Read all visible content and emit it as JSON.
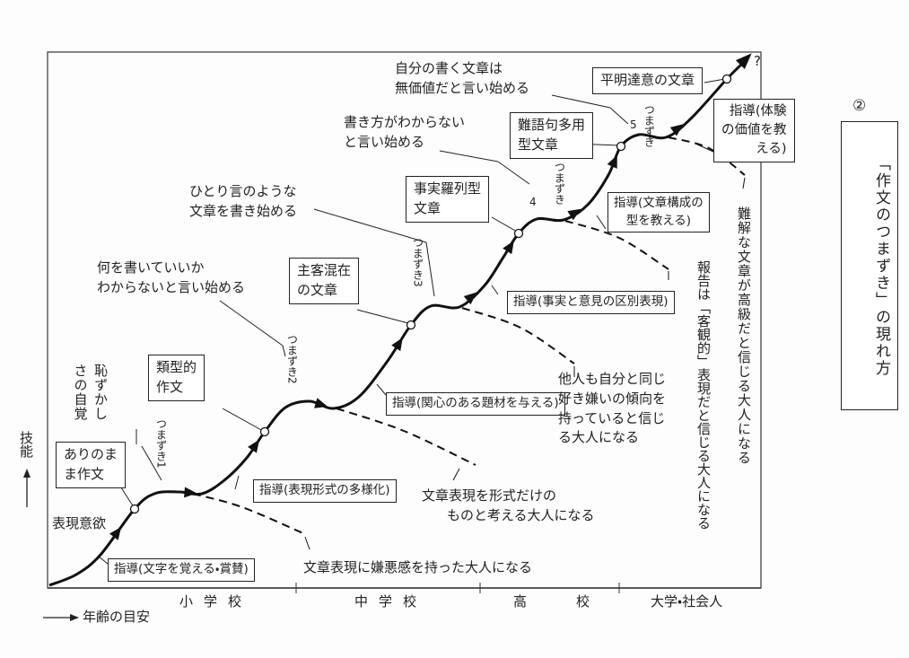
{
  "side_title": {
    "number": "②",
    "text": "「作文のつまずき」の現れ方"
  },
  "axes": {
    "y_label": "技能",
    "x_label": "年齢の目安",
    "stages": [
      "小学校",
      "中学校",
      "高校",
      "大学・社会人"
    ]
  },
  "states": [
    {
      "lines": [
        "ありのま",
        "ま作文"
      ]
    },
    {
      "lines": [
        "類型的",
        "作文"
      ]
    },
    {
      "lines": [
        "主客混在",
        "の文章"
      ]
    },
    {
      "lines": [
        "事実羅列型",
        "文章"
      ]
    },
    {
      "lines": [
        "難語句多用",
        "型文章"
      ]
    },
    {
      "lines": [
        "平明達意の文章"
      ]
    }
  ],
  "guidance": [
    {
      "lines": [
        "指導(文字を覚える・賞賛)"
      ]
    },
    {
      "lines": [
        "指導(表現形式の多様化)"
      ]
    },
    {
      "lines": [
        "指導(関心のある題材を与える)"
      ]
    },
    {
      "lines": [
        "指導(事実と意見の区別表現)"
      ]
    },
    {
      "lines": [
        "指導(文章構成の",
        "型を教える)"
      ]
    },
    {
      "lines": [
        "指導(体験",
        "の価値を教",
        "える)"
      ]
    }
  ],
  "stumbles": [
    {
      "text": "つまずき",
      "number": "1"
    },
    {
      "text": "つまずき",
      "number": "2"
    },
    {
      "text": "つまずき",
      "number": "3"
    },
    {
      "text": "つまずき",
      "number": "4"
    },
    {
      "text": "つまずき",
      "number": "5"
    }
  ],
  "remarks": [
    {
      "lines": [
        "表現意欲"
      ]
    },
    {
      "lines": [
        "恥ずかし",
        "さの自覚"
      ]
    },
    {
      "lines": [
        "何を書いていいか",
        "わからないと言い始める"
      ]
    },
    {
      "lines": [
        "ひとり言のような",
        "文章を書き始める"
      ]
    },
    {
      "lines": [
        "書き方がわからない",
        "と言い始める"
      ]
    },
    {
      "lines": [
        "自分の書く文章は",
        "無価値だと言い始める"
      ]
    }
  ],
  "outcomes": [
    {
      "lines": [
        "文章表現に嫌悪感を持った大人になる"
      ]
    },
    {
      "lines": [
        "文章表現を形式だけの",
        "ものと考える大人になる"
      ]
    },
    {
      "lines": [
        "他人も自分と同じ",
        "好き嫌いの傾向を",
        "持っていると信じ",
        "る大人になる"
      ]
    },
    {
      "lines": [
        "報告は「客観的」表現だと信じる大人になる"
      ]
    },
    {
      "lines": [
        "難解な文章が高級だと信じる大人になる"
      ]
    }
  ],
  "end_mark": "?"
}
